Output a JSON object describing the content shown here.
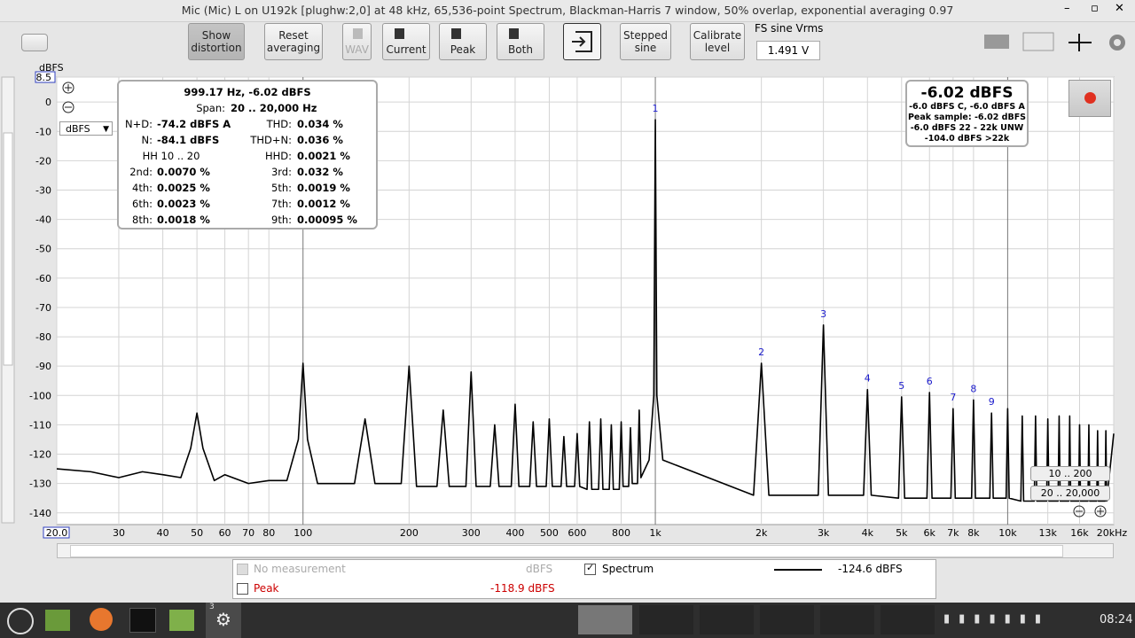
{
  "window": {
    "title": "Mic (Mic) L on U192k [plughw:2,0] at 48 kHz, 65,536-point Spectrum, Blackman-Harris 7 window, 50% overlap, exponential averaging 0.97"
  },
  "toolbar": {
    "show_distortion": "Show distortion",
    "reset_averaging": "Reset averaging",
    "wav": "WAV",
    "current": "Current",
    "peak": "Peak",
    "both": "Both",
    "stepped_sine": "Stepped sine",
    "calibrate_level": "Calibrate level",
    "fs_label": "FS sine Vrms",
    "fs_value": "1.491 V"
  },
  "readout": {
    "header": "999.17 Hz, -6.02 dBFS",
    "span_label": "Span:",
    "span": "20 .. 20,000 Hz",
    "left": [
      {
        "label": "N+D:",
        "value": "-74.2 dBFS A"
      },
      {
        "label": "N:",
        "value": "-84.1 dBFS"
      },
      {
        "label": "HH 10 .. 20"
      },
      {
        "label": "2nd:",
        "value": "0.0070 %"
      },
      {
        "label": "4th:",
        "value": "0.0025 %"
      },
      {
        "label": "6th:",
        "value": "0.0023 %"
      },
      {
        "label": "8th:",
        "value": "0.0018 %"
      }
    ],
    "right": [
      {
        "label": "THD:",
        "value": "0.034 %"
      },
      {
        "label": "THD+N:",
        "value": "0.036 %"
      },
      {
        "label": "HHD:",
        "value": "0.0021 %"
      },
      {
        "label": "3rd:",
        "value": "0.032 %"
      },
      {
        "label": "5th:",
        "value": "0.0019 %"
      },
      {
        "label": "7th:",
        "value": "0.0012 %"
      },
      {
        "label": "9th:",
        "value": "0.00095 %"
      }
    ]
  },
  "level": {
    "main": "-6.02 dBFS",
    "lines": [
      "-6.0 dBFS C, -6.0 dBFS A",
      "Peak sample: -6.02 dBFS",
      "-6.0 dBFS 22 - 22k UNW",
      "-104.0 dBFS >22k"
    ]
  },
  "unit_selector": "dBFS",
  "zoom_presets": [
    "10 .. 200",
    "20 .. 20,000"
  ],
  "chart_data": {
    "type": "line",
    "y_label": "dBFS",
    "xscale": "log",
    "grid": true,
    "xlim": [
      20,
      20000
    ],
    "ylim": [
      -144,
      8.5
    ],
    "xticks": [
      {
        "value": 20,
        "label": "20.0"
      },
      30,
      40,
      50,
      60,
      70,
      80,
      100,
      200,
      300,
      400,
      500,
      600,
      800,
      {
        "value": 1000,
        "label": "1k"
      },
      {
        "value": 2000,
        "label": "2k"
      },
      {
        "value": 3000,
        "label": "3k"
      },
      {
        "value": 4000,
        "label": "4k"
      },
      {
        "value": 5000,
        "label": "5k"
      },
      {
        "value": 6000,
        "label": "6k"
      },
      {
        "value": 7000,
        "label": "7k"
      },
      {
        "value": 8000,
        "label": "8k"
      },
      {
        "value": 10000,
        "label": "10k"
      },
      {
        "value": 13000,
        "label": "13k"
      },
      {
        "value": 16000,
        "label": "16k"
      },
      {
        "value": 20000,
        "label": "20kHz"
      }
    ],
    "yticks": [
      8.5,
      0,
      -10,
      -20,
      -30,
      -40,
      -50,
      -60,
      -70,
      -80,
      -90,
      -100,
      -110,
      -120,
      -130,
      -140
    ],
    "x": [
      20,
      25,
      30,
      35,
      40,
      45,
      48,
      50,
      52,
      56,
      60,
      70,
      80,
      90,
      97,
      100,
      103,
      110,
      140,
      150,
      160,
      190,
      200,
      210,
      240,
      250,
      260,
      290,
      300,
      310,
      340,
      350,
      360,
      390,
      400,
      410,
      440,
      450,
      460,
      490,
      500,
      510,
      540,
      550,
      560,
      590,
      600,
      610,
      640,
      650,
      660,
      690,
      700,
      710,
      740,
      750,
      760,
      790,
      800,
      810,
      840,
      850,
      860,
      890,
      900,
      910,
      960,
      990,
      1000,
      1010,
      1050,
      1900,
      2000,
      2100,
      2900,
      3000,
      3100,
      3900,
      4000,
      4100,
      4900,
      5000,
      5100,
      5900,
      6000,
      6100,
      6900,
      7000,
      7100,
      7900,
      8000,
      8100,
      8900,
      9000,
      9100,
      9900,
      10000,
      10100,
      10900,
      11000,
      11100,
      11900,
      12000,
      12100,
      12900,
      13000,
      13100,
      13900,
      14000,
      14100,
      14900,
      15000,
      15100,
      15900,
      16000,
      16100,
      16900,
      17000,
      17100,
      17900,
      18000,
      18100,
      18900,
      19000,
      19100,
      20000
    ],
    "series": [
      {
        "name": "Spectrum",
        "color": "#000000",
        "values": [
          -125,
          -126,
          -128,
          -126,
          -127,
          -128,
          -118,
          -106,
          -118,
          -129,
          -127,
          -130,
          -129,
          -129,
          -115,
          -89,
          -115,
          -130,
          -130,
          -108,
          -130,
          -130,
          -90,
          -131,
          -131,
          -105,
          -131,
          -131,
          -92,
          -131,
          -131,
          -110,
          -131,
          -131,
          -103,
          -131,
          -131,
          -109,
          -131,
          -131,
          -108,
          -131,
          -131,
          -114,
          -131,
          -131,
          -113,
          -131,
          -132,
          -109,
          -132,
          -132,
          -108,
          -132,
          -132,
          -110,
          -132,
          -132,
          -109,
          -131,
          -131,
          -111,
          -130,
          -130,
          -105,
          -128,
          -122,
          -100,
          -6.02,
          -100,
          -122,
          -134,
          -89,
          -134,
          -134,
          -76,
          -134,
          -134,
          -98,
          -134,
          -135,
          -100.5,
          -135,
          -135,
          -99,
          -135,
          -135,
          -104.5,
          -135,
          -135,
          -101.5,
          -135,
          -135,
          -106,
          -135,
          -135,
          -104.5,
          -135,
          -136,
          -107,
          -136,
          -136,
          -107,
          -136,
          -136,
          -108,
          -136,
          -136,
          -107,
          -136,
          -136,
          -107,
          -136,
          -136,
          -110,
          -136,
          -136,
          -110,
          -136,
          -136,
          -112,
          -136,
          -136,
          -112,
          -136,
          -113
        ]
      }
    ],
    "harmonics": {
      "labels": [
        "1",
        "2",
        "3",
        "4",
        "5",
        "6",
        "7",
        "8",
        "9"
      ],
      "x": [
        1000,
        2000,
        3000,
        4000,
        5000,
        6000,
        7000,
        8000,
        9000
      ],
      "values": [
        -6.02,
        -89,
        -76,
        -98,
        -100.5,
        -99,
        -104.5,
        -101.5,
        -106
      ]
    }
  },
  "legend": {
    "no_measurement": "No measurement",
    "no_measurement_unit": "dBFS",
    "peak": "Peak",
    "peak_value": "-118.9 dBFS",
    "spectrum_value": "-124.6 dBFS"
  },
  "taskbar": {
    "badge": "3",
    "clock": "08:24"
  }
}
